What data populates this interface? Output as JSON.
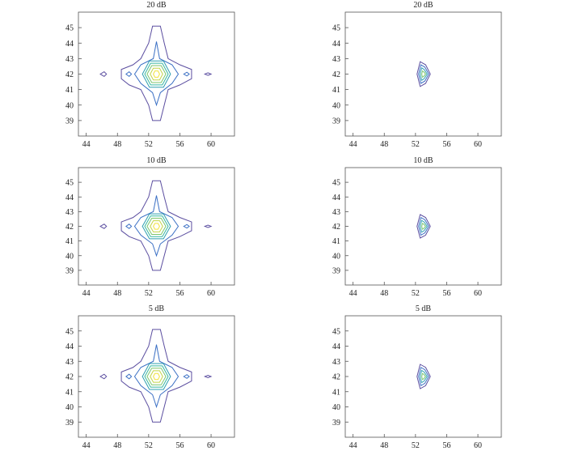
{
  "chart_data": [
    {
      "type": "contour",
      "title": "20 dB",
      "xlim": [
        43,
        63
      ],
      "ylim": [
        38,
        46
      ],
      "xticks": [
        44,
        48,
        52,
        56,
        60
      ],
      "yticks": [
        39,
        40,
        41,
        42,
        43,
        44,
        45
      ],
      "contours": [
        {
          "color": "#5b4ea0",
          "x": [
            52.5,
            53.5,
            54,
            54.5,
            56,
            57.5,
            57.5,
            56,
            54.5,
            54,
            53.5,
            52.5,
            52,
            51,
            49.5,
            48.5,
            48.5,
            50,
            51,
            52
          ],
          "y": [
            45.1,
            45.1,
            44,
            43,
            42.6,
            42.3,
            41.7,
            41.3,
            41,
            40,
            39,
            39,
            40,
            41,
            41.3,
            41.7,
            42.3,
            42.6,
            43,
            44
          ]
        },
        {
          "color": "#5b4ea0",
          "x": [
            45.8,
            46.3,
            46.6,
            46.3
          ],
          "y": [
            42,
            42.15,
            42,
            41.85
          ]
        },
        {
          "color": "#5b4ea0",
          "x": [
            59.2,
            59.6,
            60,
            59.6
          ],
          "y": [
            42,
            42.08,
            42,
            41.92
          ]
        },
        {
          "color": "#3a6fc4",
          "x": [
            53,
            53.4,
            55,
            55.8,
            55,
            53.5,
            53,
            52.5,
            51,
            50.2,
            51,
            52.6
          ],
          "y": [
            44.1,
            43,
            42.6,
            42,
            41.4,
            40.8,
            40,
            40.8,
            41.4,
            42,
            42.6,
            43
          ]
        },
        {
          "color": "#3a6fc4",
          "x": [
            49.1,
            49.5,
            49.8,
            49.5
          ],
          "y": [
            42,
            42.15,
            42,
            41.85
          ]
        },
        {
          "color": "#3a6fc4",
          "x": [
            56.5,
            56.9,
            57.2,
            56.9
          ],
          "y": [
            42,
            42.12,
            42,
            41.88
          ]
        },
        {
          "color": "#2e9fb0",
          "x": [
            54.8,
            53.9,
            52.1,
            51.2,
            52.1,
            53.9
          ],
          "y": [
            42,
            42.85,
            42.85,
            42,
            41.15,
            41.15
          ]
        },
        {
          "color": "#37b8a0",
          "x": [
            54.5,
            53.75,
            52.25,
            51.5,
            52.25,
            53.75
          ],
          "y": [
            42,
            42.7,
            42.7,
            42,
            41.3,
            41.3
          ]
        },
        {
          "color": "#7cc66e",
          "x": [
            54.2,
            53.6,
            52.4,
            51.8,
            52.4,
            53.6
          ],
          "y": [
            42,
            42.55,
            42.55,
            42,
            41.45,
            41.45
          ]
        },
        {
          "color": "#c3d548",
          "x": [
            53.8,
            53.4,
            52.6,
            52.2,
            52.6,
            53.4
          ],
          "y": [
            42,
            42.38,
            42.38,
            42,
            41.62,
            41.62
          ]
        },
        {
          "color": "#f2e23a",
          "x": [
            53.4,
            53.2,
            52.8,
            52.6,
            52.8,
            53.2
          ],
          "y": [
            42,
            42.2,
            42.2,
            42,
            41.8,
            41.8
          ]
        }
      ]
    },
    {
      "type": "contour",
      "title": "20 dB",
      "xlim": [
        43,
        63
      ],
      "ylim": [
        38,
        46
      ],
      "xticks": [
        44,
        48,
        52,
        56,
        60
      ],
      "yticks": [
        39,
        40,
        41,
        42,
        43,
        44,
        45
      ],
      "contours": [
        {
          "color": "#5b4ea0",
          "x": [
            52.6,
            53.3,
            53.9,
            53.3,
            52.6,
            52.2
          ],
          "y": [
            42.8,
            42.6,
            42,
            41.4,
            41.2,
            42
          ]
        },
        {
          "color": "#3a6fc4",
          "x": [
            52.7,
            53.2,
            53.7,
            53.2,
            52.7,
            52.4
          ],
          "y": [
            42.6,
            42.45,
            42,
            41.55,
            41.4,
            42
          ]
        },
        {
          "color": "#2e9fb0",
          "x": [
            52.8,
            53.1,
            53.5,
            53.1,
            52.8,
            52.6
          ],
          "y": [
            42.4,
            42.3,
            42,
            41.7,
            41.6,
            42
          ]
        },
        {
          "color": "#7cc66e",
          "x": [
            52.9,
            53.05,
            53.3,
            53.05,
            52.9,
            52.8
          ],
          "y": [
            42.2,
            42.15,
            42,
            41.85,
            41.8,
            42
          ]
        }
      ]
    },
    {
      "type": "contour",
      "title": "10 dB",
      "xlim": [
        43,
        63
      ],
      "ylim": [
        38,
        46
      ],
      "xticks": [
        44,
        48,
        52,
        56,
        60
      ],
      "yticks": [
        39,
        40,
        41,
        42,
        43,
        44,
        45
      ],
      "contours": [
        {
          "color": "#5b4ea0",
          "x": [
            52.5,
            53.5,
            54,
            54.5,
            56,
            57.5,
            57.5,
            56,
            54.5,
            54,
            53.5,
            52.5,
            52,
            51,
            49.5,
            48.5,
            48.5,
            50,
            51,
            52
          ],
          "y": [
            45.1,
            45.1,
            44,
            43,
            42.6,
            42.3,
            41.7,
            41.3,
            41,
            40,
            39,
            39,
            40,
            41,
            41.3,
            41.7,
            42.3,
            42.6,
            43,
            44
          ]
        },
        {
          "color": "#5b4ea0",
          "x": [
            45.8,
            46.3,
            46.6,
            46.3
          ],
          "y": [
            42,
            42.15,
            42,
            41.85
          ]
        },
        {
          "color": "#5b4ea0",
          "x": [
            59.2,
            59.6,
            60,
            59.6
          ],
          "y": [
            42,
            42.08,
            42,
            41.92
          ]
        },
        {
          "color": "#3a6fc4",
          "x": [
            53,
            53.4,
            55,
            55.8,
            55,
            53.5,
            53,
            52.5,
            51,
            50.2,
            51,
            52.6
          ],
          "y": [
            44.1,
            43,
            42.6,
            42,
            41.4,
            40.8,
            40,
            40.8,
            41.4,
            42,
            42.6,
            43
          ]
        },
        {
          "color": "#3a6fc4",
          "x": [
            49.1,
            49.5,
            49.8,
            49.5
          ],
          "y": [
            42,
            42.15,
            42,
            41.85
          ]
        },
        {
          "color": "#3a6fc4",
          "x": [
            56.5,
            56.9,
            57.2,
            56.9
          ],
          "y": [
            42,
            42.12,
            42,
            41.88
          ]
        },
        {
          "color": "#2e9fb0",
          "x": [
            54.8,
            53.9,
            52.1,
            51.2,
            52.1,
            53.9
          ],
          "y": [
            42,
            42.85,
            42.85,
            42,
            41.15,
            41.15
          ]
        },
        {
          "color": "#37b8a0",
          "x": [
            54.5,
            53.75,
            52.25,
            51.5,
            52.25,
            53.75
          ],
          "y": [
            42,
            42.7,
            42.7,
            42,
            41.3,
            41.3
          ]
        },
        {
          "color": "#7cc66e",
          "x": [
            54.2,
            53.6,
            52.4,
            51.8,
            52.4,
            53.6
          ],
          "y": [
            42,
            42.55,
            42.55,
            42,
            41.45,
            41.45
          ]
        },
        {
          "color": "#c3d548",
          "x": [
            53.8,
            53.4,
            52.6,
            52.2,
            52.6,
            53.4
          ],
          "y": [
            42,
            42.38,
            42.38,
            42,
            41.62,
            41.62
          ]
        },
        {
          "color": "#f2e23a",
          "x": [
            53.4,
            53.2,
            52.8,
            52.6,
            52.8,
            53.2
          ],
          "y": [
            42,
            42.2,
            42.2,
            42,
            41.8,
            41.8
          ]
        }
      ]
    },
    {
      "type": "contour",
      "title": "10 dB",
      "xlim": [
        43,
        63
      ],
      "ylim": [
        38,
        46
      ],
      "xticks": [
        44,
        48,
        52,
        56,
        60
      ],
      "yticks": [
        39,
        40,
        41,
        42,
        43,
        44,
        45
      ],
      "contours": [
        {
          "color": "#5b4ea0",
          "x": [
            52.6,
            53.3,
            53.9,
            53.3,
            52.6,
            52.2
          ],
          "y": [
            42.8,
            42.6,
            42,
            41.4,
            41.2,
            42
          ]
        },
        {
          "color": "#3a6fc4",
          "x": [
            52.7,
            53.2,
            53.7,
            53.2,
            52.7,
            52.4
          ],
          "y": [
            42.6,
            42.45,
            42,
            41.55,
            41.4,
            42
          ]
        },
        {
          "color": "#2e9fb0",
          "x": [
            52.8,
            53.1,
            53.5,
            53.1,
            52.8,
            52.6
          ],
          "y": [
            42.4,
            42.3,
            42,
            41.7,
            41.6,
            42
          ]
        },
        {
          "color": "#7cc66e",
          "x": [
            52.9,
            53.05,
            53.3,
            53.05,
            52.9,
            52.8
          ],
          "y": [
            42.2,
            42.15,
            42,
            41.85,
            41.8,
            42
          ]
        }
      ]
    },
    {
      "type": "contour",
      "title": "5 dB",
      "xlim": [
        43,
        63
      ],
      "ylim": [
        38,
        46
      ],
      "xticks": [
        44,
        48,
        52,
        56,
        60
      ],
      "yticks": [
        39,
        40,
        41,
        42,
        43,
        44,
        45
      ],
      "contours": [
        {
          "color": "#5b4ea0",
          "x": [
            52.5,
            53.5,
            54,
            54.5,
            56,
            57.5,
            57.5,
            56,
            54.5,
            54,
            53.5,
            52.5,
            52,
            51,
            49.5,
            48.5,
            48.5,
            50,
            51,
            52
          ],
          "y": [
            45.1,
            45.1,
            44,
            43,
            42.6,
            42.3,
            41.7,
            41.3,
            41,
            40,
            39,
            39,
            40,
            41,
            41.3,
            41.7,
            42.3,
            42.6,
            43,
            44
          ]
        },
        {
          "color": "#5b4ea0",
          "x": [
            45.8,
            46.3,
            46.6,
            46.3
          ],
          "y": [
            42,
            42.15,
            42,
            41.85
          ]
        },
        {
          "color": "#5b4ea0",
          "x": [
            59.2,
            59.6,
            60,
            59.6
          ],
          "y": [
            42,
            42.08,
            42,
            41.92
          ]
        },
        {
          "color": "#3a6fc4",
          "x": [
            53,
            53.4,
            55,
            55.8,
            55,
            53.5,
            53,
            52.5,
            51,
            50.2,
            51,
            52.6
          ],
          "y": [
            44.1,
            43,
            42.6,
            42,
            41.4,
            40.8,
            40,
            40.8,
            41.4,
            42,
            42.6,
            43
          ]
        },
        {
          "color": "#3a6fc4",
          "x": [
            49.1,
            49.5,
            49.8,
            49.5
          ],
          "y": [
            42,
            42.15,
            42,
            41.85
          ]
        },
        {
          "color": "#3a6fc4",
          "x": [
            56.5,
            56.9,
            57.2,
            56.9
          ],
          "y": [
            42,
            42.12,
            42,
            41.88
          ]
        },
        {
          "color": "#2e9fb0",
          "x": [
            54.8,
            53.9,
            52.1,
            51.2,
            52.1,
            53.9
          ],
          "y": [
            42,
            42.85,
            42.85,
            42,
            41.15,
            41.15
          ]
        },
        {
          "color": "#37b8a0",
          "x": [
            54.5,
            53.75,
            52.25,
            51.5,
            52.25,
            53.75
          ],
          "y": [
            42,
            42.7,
            42.7,
            42,
            41.3,
            41.3
          ]
        },
        {
          "color": "#7cc66e",
          "x": [
            54.2,
            53.6,
            52.4,
            51.8,
            52.4,
            53.6
          ],
          "y": [
            42,
            42.55,
            42.55,
            42,
            41.45,
            41.45
          ]
        },
        {
          "color": "#c3d548",
          "x": [
            53.8,
            53.4,
            52.6,
            52.2,
            52.6,
            53.4
          ],
          "y": [
            42,
            42.38,
            42.38,
            42,
            41.62,
            41.62
          ]
        },
        {
          "color": "#f2e23a",
          "x": [
            53.4,
            53.2,
            52.8,
            52.6,
            52.8,
            53.2
          ],
          "y": [
            42,
            42.2,
            42.2,
            42,
            41.8,
            41.8
          ]
        }
      ]
    },
    {
      "type": "contour",
      "title": "5 dB",
      "xlim": [
        43,
        63
      ],
      "ylim": [
        38,
        46
      ],
      "xticks": [
        44,
        48,
        52,
        56,
        60
      ],
      "yticks": [
        39,
        40,
        41,
        42,
        43,
        44,
        45
      ],
      "contours": [
        {
          "color": "#5b4ea0",
          "x": [
            52.6,
            53.3,
            53.9,
            53.3,
            52.6,
            52.2
          ],
          "y": [
            42.8,
            42.6,
            42,
            41.4,
            41.2,
            42
          ]
        },
        {
          "color": "#3a6fc4",
          "x": [
            52.7,
            53.2,
            53.7,
            53.2,
            52.7,
            52.4
          ],
          "y": [
            42.6,
            42.45,
            42,
            41.55,
            41.4,
            42
          ]
        },
        {
          "color": "#2e9fb0",
          "x": [
            52.8,
            53.1,
            53.5,
            53.1,
            52.8,
            52.6
          ],
          "y": [
            42.4,
            42.3,
            42,
            41.7,
            41.6,
            42
          ]
        },
        {
          "color": "#7cc66e",
          "x": [
            52.9,
            53.05,
            53.3,
            53.05,
            52.9,
            52.8
          ],
          "y": [
            42.2,
            42.15,
            42,
            41.85,
            41.8,
            42
          ]
        }
      ]
    }
  ]
}
